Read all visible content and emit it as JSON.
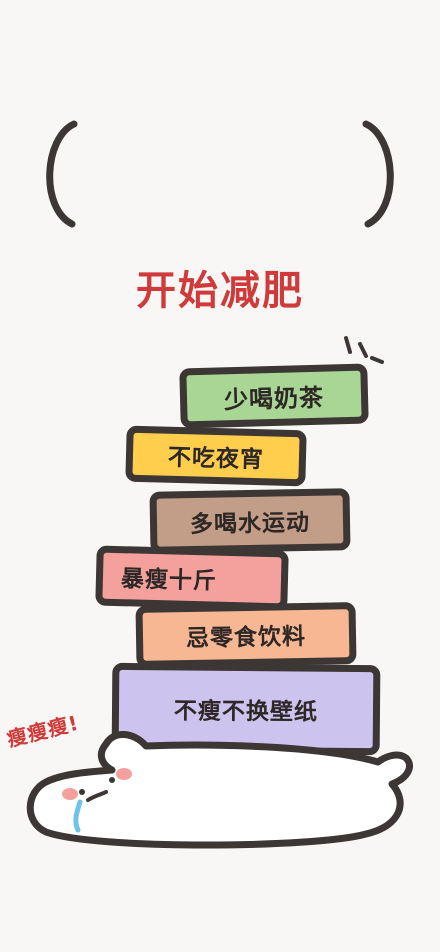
{
  "title": "开始减肥",
  "books": [
    {
      "label": "少喝奶茶",
      "color": "#a9d694"
    },
    {
      "label": "不吃夜宵",
      "color": "#ffce4d"
    },
    {
      "label": "多喝水运动",
      "color": "#c29d88"
    },
    {
      "label": "暴瘦十斤",
      "color": "#f4a19d"
    },
    {
      "label": "忌零食饮料",
      "color": "#f7b793"
    },
    {
      "label": "不瘦不换壁纸",
      "color": "#cdc3ef"
    }
  ],
  "exclamation": "瘦瘦瘦!",
  "colors": {
    "title": "#cf3a3a",
    "outline": "#3c3635",
    "background": "#f8f7f5"
  }
}
